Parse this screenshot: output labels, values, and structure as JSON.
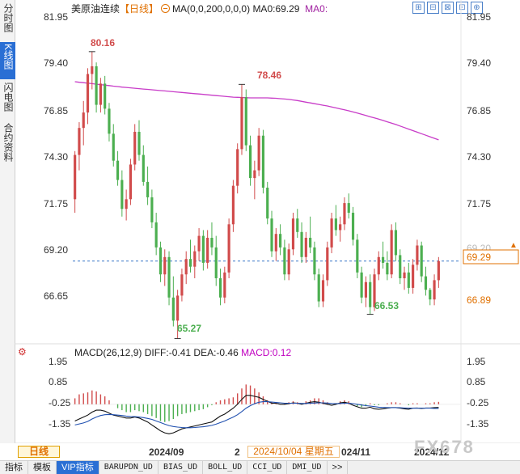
{
  "sidebar": {
    "tabs": [
      {
        "label": "分时图",
        "active": false
      },
      {
        "label": "K线图",
        "active": true
      },
      {
        "label": "闪电图",
        "active": false
      },
      {
        "label": "合约资料",
        "active": false
      }
    ]
  },
  "header": {
    "name": "美原油连续",
    "period": "【日线】",
    "ma": "MA(0,0,200,0,0,0)",
    "ma0": "MA0:69.29",
    "ma0_short": "MA0:"
  },
  "toolbar_icons": [
    "⊞",
    "⊟",
    "⊠",
    "⊡",
    "⊕"
  ],
  "price_axis": {
    "ticks": [
      "81.95",
      "79.40",
      "76.85",
      "74.30",
      "71.75",
      "69.20",
      "66.65"
    ],
    "current_price": "69.29",
    "cursor_price": "66.89",
    "right_overlap": "69.20"
  },
  "annotations": {
    "high1": "80.16",
    "high2": "78.46",
    "low1": "65.27",
    "low2": "66.53"
  },
  "macd": {
    "name": "MACD(26,12,9)",
    "diff": "DIFF:-0.41",
    "dea": "DEA:-0.46",
    "macd": "MACD:0.12",
    "ticks": [
      "1.95",
      "0.85",
      "-0.25",
      "-1.35"
    ]
  },
  "date_axis": {
    "period_label": "日线",
    "labels": [
      "2024/09",
      "2",
      "024/11",
      "2024/12"
    ],
    "cursor_date": "2024/10/04 星期五"
  },
  "watermark": "FX678",
  "bottom_tabs": [
    {
      "label": "指标",
      "active": false
    },
    {
      "label": "模板",
      "active": false
    },
    {
      "label": "VIP指标",
      "active": true
    },
    {
      "label": "BARUPDN_UD",
      "active": false
    },
    {
      "label": "BIAS_UD",
      "active": false
    },
    {
      "label": "BOLL_UD",
      "active": false
    },
    {
      "label": "CCI_UD",
      "active": false
    },
    {
      "label": "DMI_UD",
      "active": false
    },
    {
      "label": ">>",
      "active": false
    }
  ],
  "colors": {
    "up": "#d14b4b",
    "down": "#4caf50",
    "ma": "#c83cc8",
    "accent": "#e07000",
    "active_tab": "#2a6fd4"
  },
  "chart_data": {
    "type": "candlestick",
    "ylim": [
      65.0,
      82.0
    ],
    "candles": [
      {
        "o": 72.5,
        "h": 75.0,
        "l": 71.8,
        "c": 74.8
      },
      {
        "o": 74.8,
        "h": 76.5,
        "l": 74.0,
        "c": 76.2
      },
      {
        "o": 76.2,
        "h": 77.6,
        "l": 75.3,
        "c": 77.0
      },
      {
        "o": 77.0,
        "h": 79.3,
        "l": 76.4,
        "c": 79.0
      },
      {
        "o": 79.0,
        "h": 80.16,
        "l": 78.2,
        "c": 79.4
      },
      {
        "o": 79.4,
        "h": 79.6,
        "l": 77.0,
        "c": 77.4
      },
      {
        "o": 77.4,
        "h": 78.8,
        "l": 77.0,
        "c": 78.5
      },
      {
        "o": 78.5,
        "h": 78.9,
        "l": 76.9,
        "c": 77.2
      },
      {
        "o": 77.2,
        "h": 77.5,
        "l": 75.5,
        "c": 75.9
      },
      {
        "o": 75.9,
        "h": 76.4,
        "l": 74.2,
        "c": 74.5
      },
      {
        "o": 74.5,
        "h": 75.0,
        "l": 73.2,
        "c": 73.5
      },
      {
        "o": 73.5,
        "h": 74.0,
        "l": 71.6,
        "c": 72.0
      },
      {
        "o": 72.0,
        "h": 73.0,
        "l": 71.4,
        "c": 72.5
      },
      {
        "o": 72.5,
        "h": 74.6,
        "l": 72.2,
        "c": 74.3
      },
      {
        "o": 74.3,
        "h": 76.4,
        "l": 74.0,
        "c": 76.0
      },
      {
        "o": 76.0,
        "h": 76.6,
        "l": 74.5,
        "c": 74.8
      },
      {
        "o": 74.8,
        "h": 75.3,
        "l": 73.2,
        "c": 73.4
      },
      {
        "o": 73.4,
        "h": 74.2,
        "l": 72.2,
        "c": 72.6
      },
      {
        "o": 72.6,
        "h": 73.0,
        "l": 71.0,
        "c": 71.3
      },
      {
        "o": 71.3,
        "h": 71.8,
        "l": 69.6,
        "c": 70.0
      },
      {
        "o": 70.0,
        "h": 70.3,
        "l": 68.2,
        "c": 68.6
      },
      {
        "o": 68.6,
        "h": 69.9,
        "l": 68.0,
        "c": 69.5
      },
      {
        "o": 69.5,
        "h": 69.8,
        "l": 67.0,
        "c": 67.4
      },
      {
        "o": 67.4,
        "h": 68.5,
        "l": 65.9,
        "c": 66.2
      },
      {
        "o": 66.2,
        "h": 67.8,
        "l": 65.27,
        "c": 67.5
      },
      {
        "o": 67.5,
        "h": 68.9,
        "l": 67.2,
        "c": 68.6
      },
      {
        "o": 68.6,
        "h": 69.8,
        "l": 68.1,
        "c": 69.4
      },
      {
        "o": 69.4,
        "h": 70.4,
        "l": 68.7,
        "c": 69.0
      },
      {
        "o": 69.0,
        "h": 70.1,
        "l": 68.4,
        "c": 69.8
      },
      {
        "o": 69.8,
        "h": 71.0,
        "l": 69.3,
        "c": 70.6
      },
      {
        "o": 70.6,
        "h": 70.9,
        "l": 68.8,
        "c": 69.2
      },
      {
        "o": 69.2,
        "h": 70.9,
        "l": 68.9,
        "c": 70.5
      },
      {
        "o": 70.5,
        "h": 71.3,
        "l": 69.6,
        "c": 70.0
      },
      {
        "o": 70.0,
        "h": 70.6,
        "l": 68.0,
        "c": 68.4
      },
      {
        "o": 68.4,
        "h": 68.9,
        "l": 67.0,
        "c": 67.4
      },
      {
        "o": 67.4,
        "h": 69.0,
        "l": 67.1,
        "c": 68.7
      },
      {
        "o": 68.7,
        "h": 71.5,
        "l": 68.4,
        "c": 71.2
      },
      {
        "o": 71.2,
        "h": 73.5,
        "l": 70.8,
        "c": 73.2
      },
      {
        "o": 73.2,
        "h": 75.4,
        "l": 72.8,
        "c": 75.1
      },
      {
        "o": 75.1,
        "h": 78.46,
        "l": 74.8,
        "c": 77.8
      },
      {
        "o": 77.8,
        "h": 78.2,
        "l": 75.0,
        "c": 75.3
      },
      {
        "o": 75.3,
        "h": 75.8,
        "l": 73.2,
        "c": 73.6
      },
      {
        "o": 73.6,
        "h": 74.5,
        "l": 72.5,
        "c": 74.0
      },
      {
        "o": 74.0,
        "h": 76.2,
        "l": 73.7,
        "c": 75.8
      },
      {
        "o": 75.8,
        "h": 76.1,
        "l": 72.8,
        "c": 73.1
      },
      {
        "o": 73.1,
        "h": 73.4,
        "l": 71.2,
        "c": 71.5
      },
      {
        "o": 71.5,
        "h": 71.9,
        "l": 69.5,
        "c": 69.8
      },
      {
        "o": 69.8,
        "h": 71.0,
        "l": 69.3,
        "c": 70.7
      },
      {
        "o": 70.7,
        "h": 71.2,
        "l": 69.6,
        "c": 70.0
      },
      {
        "o": 70.0,
        "h": 70.4,
        "l": 68.3,
        "c": 68.6
      },
      {
        "o": 68.6,
        "h": 70.2,
        "l": 68.3,
        "c": 69.9
      },
      {
        "o": 69.9,
        "h": 71.8,
        "l": 69.6,
        "c": 71.5
      },
      {
        "o": 71.5,
        "h": 72.0,
        "l": 70.5,
        "c": 70.8
      },
      {
        "o": 70.8,
        "h": 71.3,
        "l": 69.2,
        "c": 69.5
      },
      {
        "o": 69.5,
        "h": 70.8,
        "l": 69.2,
        "c": 70.5
      },
      {
        "o": 70.5,
        "h": 71.6,
        "l": 69.7,
        "c": 70.0
      },
      {
        "o": 70.0,
        "h": 70.3,
        "l": 68.3,
        "c": 68.6
      },
      {
        "o": 68.6,
        "h": 68.9,
        "l": 66.9,
        "c": 67.2
      },
      {
        "o": 67.2,
        "h": 68.6,
        "l": 66.9,
        "c": 68.3
      },
      {
        "o": 68.3,
        "h": 70.3,
        "l": 68.0,
        "c": 70.0
      },
      {
        "o": 70.0,
        "h": 71.8,
        "l": 69.7,
        "c": 71.5
      },
      {
        "o": 71.5,
        "h": 72.2,
        "l": 70.6,
        "c": 70.9
      },
      {
        "o": 70.9,
        "h": 71.6,
        "l": 70.3,
        "c": 71.2
      },
      {
        "o": 71.2,
        "h": 72.6,
        "l": 70.9,
        "c": 72.3
      },
      {
        "o": 72.3,
        "h": 72.8,
        "l": 71.5,
        "c": 71.8
      },
      {
        "o": 71.8,
        "h": 72.1,
        "l": 70.1,
        "c": 70.4
      },
      {
        "o": 70.4,
        "h": 70.7,
        "l": 68.4,
        "c": 68.7
      },
      {
        "o": 68.7,
        "h": 69.0,
        "l": 67.1,
        "c": 67.4
      },
      {
        "o": 67.4,
        "h": 68.5,
        "l": 66.9,
        "c": 68.2
      },
      {
        "o": 68.2,
        "h": 68.6,
        "l": 66.53,
        "c": 66.9
      },
      {
        "o": 66.9,
        "h": 68.9,
        "l": 66.7,
        "c": 68.6
      },
      {
        "o": 68.6,
        "h": 69.8,
        "l": 68.3,
        "c": 69.5
      },
      {
        "o": 69.5,
        "h": 70.3,
        "l": 68.9,
        "c": 69.2
      },
      {
        "o": 69.2,
        "h": 69.8,
        "l": 68.3,
        "c": 68.6
      },
      {
        "o": 68.6,
        "h": 71.2,
        "l": 68.4,
        "c": 70.9
      },
      {
        "o": 70.9,
        "h": 71.3,
        "l": 69.3,
        "c": 69.6
      },
      {
        "o": 69.6,
        "h": 69.9,
        "l": 68.1,
        "c": 68.4
      },
      {
        "o": 68.4,
        "h": 69.0,
        "l": 67.8,
        "c": 68.7
      },
      {
        "o": 68.7,
        "h": 69.2,
        "l": 67.6,
        "c": 67.9
      },
      {
        "o": 67.9,
        "h": 69.4,
        "l": 67.6,
        "c": 69.1
      },
      {
        "o": 69.1,
        "h": 70.4,
        "l": 68.8,
        "c": 70.1
      },
      {
        "o": 70.1,
        "h": 70.3,
        "l": 68.2,
        "c": 68.5
      },
      {
        "o": 68.5,
        "h": 69.0,
        "l": 67.5,
        "c": 67.8
      },
      {
        "o": 67.8,
        "h": 67.9,
        "l": 67.0,
        "c": 67.3
      },
      {
        "o": 67.3,
        "h": 68.6,
        "l": 67.0,
        "c": 68.3
      },
      {
        "o": 68.3,
        "h": 69.5,
        "l": 67.9,
        "c": 69.29
      }
    ],
    "ma": [
      78.6,
      78.57,
      78.55,
      78.52,
      78.5,
      78.47,
      78.45,
      78.42,
      78.4,
      78.37,
      78.35,
      78.32,
      78.3,
      78.28,
      78.26,
      78.24,
      78.22,
      78.2,
      78.18,
      78.16,
      78.14,
      78.12,
      78.1,
      78.08,
      78.06,
      78.04,
      78.02,
      78.0,
      77.98,
      77.96,
      77.94,
      77.92,
      77.9,
      77.88,
      77.86,
      77.84,
      77.82,
      77.8,
      77.79,
      77.78,
      77.77,
      77.76,
      77.76,
      77.76,
      77.76,
      77.76,
      77.75,
      77.74,
      77.72,
      77.7,
      77.68,
      77.65,
      77.62,
      77.58,
      77.54,
      77.5,
      77.46,
      77.42,
      77.38,
      77.34,
      77.29,
      77.24,
      77.19,
      77.14,
      77.09,
      77.03,
      76.97,
      76.91,
      76.85,
      76.78,
      76.72,
      76.66,
      76.59,
      76.52,
      76.45,
      76.38,
      76.3,
      76.22,
      76.14,
      76.06,
      75.98,
      75.9,
      75.82,
      75.74,
      75.66,
      75.58
    ],
    "macd_ylim": [
      -1.9,
      2.2
    ],
    "macd_hist": [
      0.3,
      0.5,
      0.55,
      0.6,
      0.7,
      0.65,
      0.5,
      0.4,
      0.2,
      0.0,
      -0.2,
      -0.3,
      -0.4,
      -0.4,
      -0.3,
      -0.35,
      -0.4,
      -0.5,
      -0.6,
      -0.7,
      -0.85,
      -0.9,
      -0.85,
      -0.75,
      -0.6,
      -0.5,
      -0.45,
      -0.4,
      -0.35,
      -0.3,
      -0.25,
      -0.15,
      -0.05,
      0.1,
      0.2,
      0.25,
      0.3,
      0.35,
      0.55,
      0.8,
      1.0,
      0.95,
      0.8,
      0.6,
      0.4,
      0.2,
      0.1,
      0.05,
      0.0,
      0.05,
      0.1,
      0.15,
      0.1,
      0.05,
      0.15,
      0.2,
      0.3,
      0.3,
      0.2,
      0.1,
      0.0,
      0.05,
      0.15,
      0.2,
      0.15,
      0.0,
      -0.1,
      -0.15,
      -0.1,
      0.05,
      -0.05,
      -0.05,
      0.0,
      0.05,
      0.1,
      0.1,
      0.05,
      0.0,
      -0.05,
      0.05,
      0.05,
      0.0,
      0.05,
      0.05,
      0.1,
      0.12
    ],
    "macd_diff": [
      -1.1,
      -1.0,
      -0.9,
      -0.8,
      -0.65,
      -0.55,
      -0.55,
      -0.6,
      -0.7,
      -0.8,
      -0.85,
      -0.9,
      -0.95,
      -0.95,
      -0.9,
      -0.95,
      -1.05,
      -1.15,
      -1.3,
      -1.45,
      -1.6,
      -1.7,
      -1.75,
      -1.7,
      -1.6,
      -1.5,
      -1.45,
      -1.4,
      -1.35,
      -1.3,
      -1.25,
      -1.2,
      -1.15,
      -1.0,
      -0.85,
      -0.75,
      -0.6,
      -0.45,
      -0.25,
      0.0,
      0.2,
      0.2,
      0.15,
      0.1,
      0.0,
      -0.1,
      -0.2,
      -0.2,
      -0.25,
      -0.25,
      -0.22,
      -0.18,
      -0.2,
      -0.25,
      -0.2,
      -0.15,
      -0.12,
      -0.15,
      -0.2,
      -0.25,
      -0.3,
      -0.25,
      -0.18,
      -0.15,
      -0.2,
      -0.3,
      -0.38,
      -0.45,
      -0.45,
      -0.4,
      -0.48,
      -0.5,
      -0.48,
      -0.45,
      -0.42,
      -0.42,
      -0.45,
      -0.48,
      -0.5,
      -0.45,
      -0.44,
      -0.46,
      -0.44,
      -0.44,
      -0.42,
      -0.41
    ],
    "macd_dea": [
      -1.3,
      -1.25,
      -1.2,
      -1.12,
      -1.0,
      -0.9,
      -0.82,
      -0.78,
      -0.77,
      -0.78,
      -0.8,
      -0.82,
      -0.85,
      -0.87,
      -0.88,
      -0.9,
      -0.93,
      -0.97,
      -1.02,
      -1.1,
      -1.18,
      -1.26,
      -1.33,
      -1.38,
      -1.41,
      -1.43,
      -1.44,
      -1.44,
      -1.43,
      -1.41,
      -1.39,
      -1.36,
      -1.32,
      -1.26,
      -1.18,
      -1.1,
      -1.0,
      -0.9,
      -0.78,
      -0.62,
      -0.45,
      -0.32,
      -0.22,
      -0.15,
      -0.12,
      -0.12,
      -0.14,
      -0.16,
      -0.18,
      -0.2,
      -0.2,
      -0.2,
      -0.2,
      -0.21,
      -0.21,
      -0.2,
      -0.19,
      -0.18,
      -0.18,
      -0.19,
      -0.21,
      -0.22,
      -0.21,
      -0.2,
      -0.2,
      -0.22,
      -0.25,
      -0.29,
      -0.32,
      -0.34,
      -0.37,
      -0.4,
      -0.41,
      -0.42,
      -0.42,
      -0.42,
      -0.43,
      -0.44,
      -0.45,
      -0.45,
      -0.45,
      -0.45,
      -0.45,
      -0.45,
      -0.46,
      -0.46
    ]
  }
}
